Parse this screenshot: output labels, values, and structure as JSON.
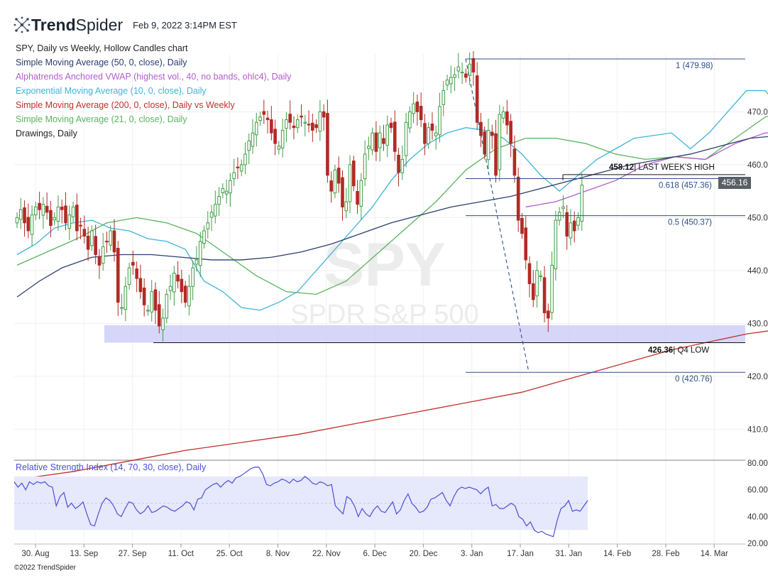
{
  "header": {
    "brand_strong": "Trend",
    "brand_light": "Spider",
    "timestamp": "Feb 9, 2022 3:14PM EST"
  },
  "legend": [
    {
      "text": "SPY, Daily vs Weekly, Hollow Candles chart",
      "color": "#222222"
    },
    {
      "text": "Simple Moving Average (50, 0, close), Daily",
      "color": "#2c3e6e"
    },
    {
      "text": "Alphatrends Anchored VWAP (highest vol., 40, no bands, ohlc4), Daily",
      "color": "#b45ccc"
    },
    {
      "text": "Exponential Moving Average (10, 0, close), Daily",
      "color": "#3fb3d8"
    },
    {
      "text": "Simple Moving Average (200, 0, close), Daily vs Weekly",
      "color": "#c0302c"
    },
    {
      "text": "Simple Moving Average (21, 0, close), Daily",
      "color": "#5bb45f"
    },
    {
      "text": "Drawings, Daily",
      "color": "#222222"
    }
  ],
  "watermark": {
    "ticker": "SPY",
    "name": "SPDR S&P 500"
  },
  "rsi": {
    "label": "Relative Strength Index (14, 70, 30, close), Daily",
    "color": "#4b4fd6",
    "ylim": [
      20,
      80
    ],
    "ticks": [
      "80.00",
      "60.00",
      "40.00",
      "20.00"
    ],
    "values": [
      66,
      62,
      65,
      60,
      66,
      64,
      66,
      65,
      66,
      63,
      62,
      48,
      55,
      58,
      47,
      50,
      46,
      48,
      51,
      42,
      34,
      33,
      42,
      50,
      54,
      52,
      48,
      42,
      40,
      46,
      51,
      50,
      45,
      42,
      44,
      48,
      43,
      44,
      46,
      48,
      47,
      45,
      44,
      46,
      48,
      51,
      50,
      45,
      53,
      54,
      60,
      62,
      64,
      65,
      62,
      65,
      67,
      65,
      69,
      70,
      72,
      74,
      76,
      77,
      77,
      72,
      64,
      63,
      65,
      66,
      68,
      67,
      65,
      68,
      66,
      67,
      70,
      68,
      65,
      64,
      66,
      65,
      63,
      64,
      48,
      45,
      42,
      55,
      53,
      48,
      40,
      46,
      42,
      40,
      45,
      48,
      44,
      43,
      47,
      51,
      42,
      45,
      52,
      57,
      50,
      47,
      43,
      44,
      47,
      53,
      54,
      56,
      58,
      52,
      48,
      55,
      60,
      62,
      61,
      62,
      61,
      60,
      57,
      60,
      62,
      48,
      49,
      46,
      46,
      48,
      50,
      48,
      40,
      38,
      33,
      36,
      30,
      28,
      29,
      27,
      26,
      25,
      37,
      46,
      48,
      52,
      44,
      45,
      44,
      48,
      52
    ]
  },
  "chart_data": {
    "type": "candlestick",
    "ticker": "SPY",
    "title": "SPY, Daily vs Weekly, Hollow Candles chart",
    "ylim": [
      401,
      482
    ],
    "y_ticks": [
      "470.00",
      "460.00",
      "450.00",
      "440.00",
      "430.00",
      "420.00",
      "410.00"
    ],
    "x_ticks": [
      "30. Aug",
      "13. Sep",
      "27. Sep",
      "11. Oct",
      "25. Oct",
      "8. Nov",
      "22. Nov",
      "6. Dec",
      "20. Dec",
      "3. Jan",
      "17. Jan",
      "31. Jan",
      "14. Feb",
      "28. Feb",
      "14. Mar"
    ],
    "last_price": "456.16",
    "closes": [
      450.0,
      451.5,
      449.0,
      447.5,
      450.5,
      452.0,
      451.5,
      452.5,
      451.0,
      448.5,
      450.0,
      452.0,
      451.5,
      449.0,
      450.5,
      452.0,
      447.5,
      448.5,
      446.5,
      444.0,
      447.5,
      443.0,
      441.0,
      444.5,
      445.5,
      447.5,
      443.5,
      434.0,
      433.0,
      437.0,
      440.5,
      441.0,
      438.5,
      436.0,
      433.5,
      432.5,
      436.0,
      432.5,
      429.5,
      431.0,
      435.5,
      437.0,
      439.5,
      438.0,
      436.0,
      434.0,
      437.0,
      440.5,
      442.0,
      445.5,
      447.5,
      449.0,
      451.0,
      452.5,
      454.0,
      455.5,
      455.0,
      457.0,
      458.5,
      459.5,
      460.0,
      462.0,
      464.5,
      466.0,
      468.0,
      469.0,
      469.5,
      468.5,
      466.0,
      464.0,
      463.5,
      466.5,
      468.5,
      468.0,
      467.0,
      468.5,
      469.0,
      468.0,
      467.5,
      466.5,
      467.0,
      470.0,
      469.0,
      458.0,
      455.0,
      459.0,
      456.5,
      452.0,
      453.0,
      460.0,
      456.0,
      452.5,
      457.0,
      462.0,
      463.5,
      466.0,
      462.5,
      466.0,
      464.0,
      467.5,
      467.0,
      462.5,
      458.5,
      461.0,
      468.0,
      470.0,
      471.5,
      470.0,
      468.5,
      464.0,
      467.0,
      466.5,
      466.0,
      471.0,
      474.0,
      476.0,
      476.5,
      477.0,
      478.5,
      477.5,
      476.5,
      479.0,
      477.5,
      468.0,
      465.5,
      462.0,
      466.5,
      465.5,
      458.0,
      469.5,
      470.0,
      467.5,
      464.0,
      458.0,
      449.5,
      447.0,
      442.0,
      437.5,
      434.5,
      440.0,
      439.0,
      432.0,
      431.0,
      441.0,
      449.5,
      451.0,
      452.0,
      446.5,
      449.0,
      447.5,
      450.0,
      456.16
    ],
    "sma200": {
      "name": "Simple Moving Average (200, 0, close), Daily vs Weekly",
      "color": "#c0302c",
      "points": [
        [
          5,
          401
        ],
        [
          15,
          402
        ],
        [
          30,
          404
        ],
        [
          45,
          406
        ],
        [
          60,
          407.5
        ],
        [
          75,
          409
        ],
        [
          90,
          411
        ],
        [
          105,
          413
        ],
        [
          120,
          415
        ],
        [
          135,
          417
        ],
        [
          145,
          419
        ],
        [
          155,
          421
        ],
        [
          165,
          423
        ],
        [
          175,
          425
        ],
        [
          185,
          426.5
        ],
        [
          195,
          428
        ],
        [
          210,
          429.5
        ],
        [
          225,
          431
        ],
        [
          240,
          433
        ],
        [
          255,
          435
        ],
        [
          270,
          437
        ],
        [
          280,
          439
        ],
        [
          290,
          440
        ],
        [
          300,
          441
        ],
        [
          310,
          441.8
        ],
        [
          320,
          442.3
        ],
        [
          330,
          443
        ]
      ]
    },
    "sma50": {
      "name": "Simple Moving Average (50, 0, close), Daily",
      "color": "#2c3e6e",
      "points": [
        [
          0,
          435
        ],
        [
          6,
          438
        ],
        [
          12,
          440.5
        ],
        [
          20,
          442.5
        ],
        [
          28,
          443
        ],
        [
          36,
          443
        ],
        [
          44,
          442.5
        ],
        [
          52,
          442
        ],
        [
          60,
          442
        ],
        [
          68,
          442.5
        ],
        [
          76,
          443.5
        ],
        [
          84,
          445
        ],
        [
          92,
          447
        ],
        [
          100,
          449
        ],
        [
          108,
          450.5
        ],
        [
          116,
          452
        ],
        [
          124,
          453
        ],
        [
          132,
          454
        ],
        [
          140,
          455.5
        ],
        [
          148,
          457
        ],
        [
          156,
          458.5
        ],
        [
          164,
          460
        ],
        [
          172,
          461
        ],
        [
          180,
          462
        ],
        [
          188,
          463.5
        ],
        [
          196,
          465
        ],
        [
          204,
          465.5
        ],
        [
          212,
          466
        ],
        [
          220,
          466
        ],
        [
          228,
          465
        ],
        [
          236,
          463.5
        ],
        [
          244,
          461.5
        ],
        [
          252,
          460
        ],
        [
          256,
          459.5
        ]
      ]
    },
    "ema10": {
      "name": "Exponential Moving Average (10, 0, close), Daily",
      "color": "#3fb3d8",
      "points": [
        [
          0,
          443
        ],
        [
          5,
          445
        ],
        [
          10,
          448
        ],
        [
          15,
          449
        ],
        [
          20,
          449.5
        ],
        [
          25,
          448
        ],
        [
          30,
          447.5
        ],
        [
          35,
          446
        ],
        [
          40,
          445.5
        ],
        [
          45,
          444
        ],
        [
          50,
          438
        ],
        [
          55,
          436
        ],
        [
          60,
          433
        ],
        [
          65,
          432.5
        ],
        [
          70,
          434
        ],
        [
          75,
          436
        ],
        [
          80,
          440
        ],
        [
          85,
          444
        ],
        [
          90,
          448
        ],
        [
          95,
          452
        ],
        [
          100,
          457
        ],
        [
          105,
          461
        ],
        [
          110,
          464
        ],
        [
          115,
          466
        ],
        [
          120,
          467
        ],
        [
          125,
          466.5
        ],
        [
          130,
          465
        ],
        [
          135,
          462
        ],
        [
          140,
          458
        ],
        [
          145,
          455
        ],
        [
          150,
          458
        ],
        [
          155,
          461
        ],
        [
          160,
          463
        ],
        [
          165,
          465
        ],
        [
          170,
          465.5
        ],
        [
          175,
          466
        ],
        [
          180,
          463
        ],
        [
          185,
          466
        ],
        [
          190,
          470
        ],
        [
          195,
          474
        ],
        [
          200,
          474
        ],
        [
          205,
          470
        ],
        [
          210,
          467
        ],
        [
          215,
          465
        ],
        [
          220,
          464
        ],
        [
          225,
          456
        ],
        [
          230,
          448
        ],
        [
          235,
          443
        ],
        [
          240,
          442
        ],
        [
          245,
          447
        ],
        [
          250,
          449
        ],
        [
          255,
          450
        ]
      ]
    },
    "sma21": {
      "name": "Simple Moving Average (21, 0, close), Daily",
      "color": "#5bb45f",
      "points": [
        [
          0,
          441
        ],
        [
          8,
          443.5
        ],
        [
          16,
          446
        ],
        [
          24,
          449
        ],
        [
          32,
          450
        ],
        [
          40,
          449
        ],
        [
          48,
          447
        ],
        [
          56,
          443
        ],
        [
          64,
          439
        ],
        [
          72,
          436
        ],
        [
          80,
          435.5
        ],
        [
          88,
          438
        ],
        [
          96,
          443
        ],
        [
          104,
          448
        ],
        [
          112,
          453
        ],
        [
          120,
          459
        ],
        [
          128,
          463
        ],
        [
          136,
          465
        ],
        [
          144,
          465
        ],
        [
          152,
          464
        ],
        [
          160,
          462
        ],
        [
          168,
          461
        ],
        [
          176,
          461.5
        ],
        [
          184,
          461
        ],
        [
          192,
          465
        ],
        [
          200,
          469
        ],
        [
          208,
          470.5
        ],
        [
          216,
          470
        ],
        [
          224,
          466
        ],
        [
          232,
          460
        ],
        [
          240,
          455
        ],
        [
          248,
          451
        ],
        [
          256,
          449
        ]
      ]
    },
    "vwap": {
      "name": "Alphatrends Anchored VWAP (highest vol., 40, no bands, ohlc4), Daily",
      "color": "#b45ccc",
      "points": [
        [
          136,
          452
        ],
        [
          144,
          453
        ],
        [
          152,
          455
        ],
        [
          160,
          457
        ],
        [
          168,
          460
        ],
        [
          176,
          461.5
        ],
        [
          184,
          461
        ],
        [
          192,
          464
        ],
        [
          200,
          466
        ],
        [
          208,
          466.5
        ],
        [
          216,
          465.5
        ],
        [
          224,
          462
        ],
        [
          232,
          459
        ],
        [
          240,
          457.5
        ],
        [
          248,
          456
        ],
        [
          256,
          455.5
        ]
      ]
    },
    "annotations": [
      {
        "kind": "fib",
        "label": "1 (479.98)",
        "price": 479.98
      },
      {
        "kind": "fib",
        "label": "0.618 (457.36)",
        "price": 457.36
      },
      {
        "kind": "fib",
        "label": "0.5 (450.37)",
        "price": 450.37
      },
      {
        "kind": "fib",
        "label": "0 (420.76)",
        "price": 420.76
      },
      {
        "kind": "level",
        "price_label": "458.12",
        "label": "| LAST WEEK'S HIGH",
        "price": 458.12
      },
      {
        "kind": "level",
        "price_label": "426.36",
        "label": "| Q4 LOW",
        "price": 426.36
      }
    ],
    "support_zone": {
      "from": 426.36,
      "to": 428.6,
      "color": "#c8c8f5"
    }
  },
  "footer": {
    "copyright": "©2022 TrendSpider"
  }
}
